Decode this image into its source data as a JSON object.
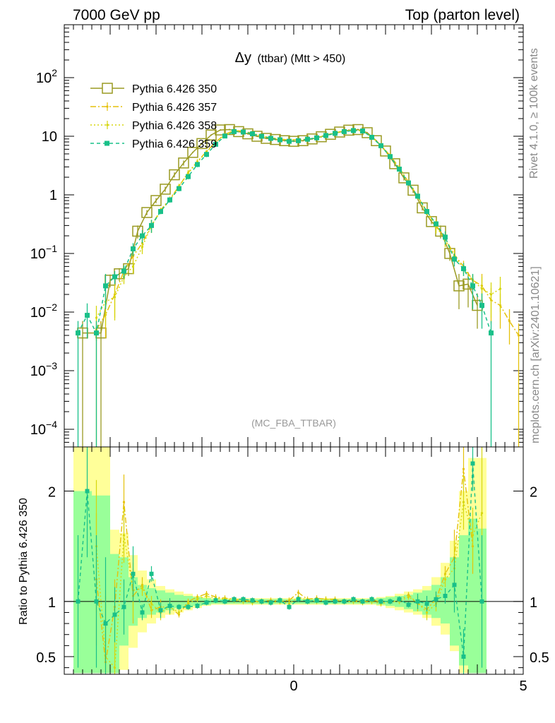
{
  "header": {
    "left": "7000 GeV pp",
    "right": "Top (parton level)"
  },
  "side_labels": {
    "rivet": "Rivet 4.1.0, ≥ 100k events",
    "mcplots": "mcplots.cern.ch [arXiv:2401.10621]"
  },
  "colors": {
    "s350": "#9a9a22",
    "s357": "#e5c10a",
    "s358": "#d6d60e",
    "s359": "#19c089",
    "band_yellow": "#ffff99",
    "band_green": "#99ff99"
  },
  "chart_data": [
    {
      "type": "line",
      "title": "Δy (ttbar) (Mtt > 450)",
      "title_main": "Δy",
      "title_sub": "(ttbar) (Mtt > 450)",
      "watermark": "(MC_FBA_TTBAR)",
      "xlabel": "",
      "ylabel": "",
      "yscale": "log",
      "xlim": [
        -5,
        5
      ],
      "ylim": [
        5e-05,
        800
      ],
      "ytick_labels": [
        {
          "value": 0.0001,
          "base": "10",
          "exp": "−4"
        },
        {
          "value": 0.001,
          "base": "10",
          "exp": "−3"
        },
        {
          "value": 0.01,
          "base": "10",
          "exp": "−2"
        },
        {
          "value": 0.1,
          "base": "10",
          "exp": "−1"
        },
        {
          "value": 1,
          "base": "1",
          "exp": ""
        },
        {
          "value": 10,
          "base": "10",
          "exp": ""
        },
        {
          "value": 100,
          "base": "10",
          "exp": "2"
        }
      ],
      "legend": [
        "Pythia 6.426 350",
        "Pythia 6.426 357",
        "Pythia 6.426 358",
        "Pythia 6.426 359"
      ],
      "legend_position": "top-left",
      "series": [
        {
          "name": "Pythia 6.426 350",
          "style": "solid-open-square",
          "x": [
            -4.6,
            -4.2,
            -4.0,
            -3.8,
            -3.6,
            -3.4,
            -3.2,
            -3.0,
            -2.8,
            -2.6,
            -2.4,
            -2.2,
            -2.0,
            -1.8,
            -1.6,
            -1.4,
            -1.2,
            -1.0,
            -0.8,
            -0.6,
            -0.4,
            -0.2,
            0.0,
            0.2,
            0.4,
            0.6,
            0.8,
            1.0,
            1.2,
            1.4,
            1.6,
            1.8,
            2.0,
            2.2,
            2.4,
            2.6,
            2.8,
            3.0,
            3.2,
            3.4,
            3.6,
            3.8,
            4.0
          ],
          "y": [
            0.0044,
            0.0044,
            0.035,
            0.045,
            0.055,
            0.24,
            0.5,
            0.8,
            1.25,
            2.2,
            3.5,
            5.3,
            7.5,
            10.5,
            12.8,
            13.0,
            12.0,
            11.0,
            10.0,
            9.2,
            8.8,
            8.4,
            8.2,
            8.4,
            9.0,
            9.8,
            10.8,
            11.8,
            12.7,
            13.0,
            11.5,
            8.4,
            5.6,
            3.4,
            1.95,
            1.2,
            0.6,
            0.35,
            0.24,
            0.1,
            0.028,
            0.03,
            0.013
          ]
        },
        {
          "name": "Pythia 6.426 357",
          "style": "dashdot-small",
          "x": [
            -4.3,
            -4.1,
            -3.9,
            -3.7,
            -3.5,
            -3.3,
            -3.1,
            -2.9,
            -2.7,
            -2.5,
            -2.3,
            -2.1,
            -1.9,
            -1.7,
            -1.5,
            -1.3,
            -1.1,
            -0.9,
            -0.7,
            -0.5,
            -0.3,
            -0.1,
            0.1,
            0.3,
            0.5,
            0.7,
            0.9,
            1.1,
            1.3,
            1.5,
            1.7,
            1.9,
            2.1,
            2.3,
            2.5,
            2.7,
            2.9,
            3.1,
            3.3,
            3.5,
            3.7,
            3.9,
            4.1,
            4.3,
            4.5,
            4.7,
            4.9
          ],
          "y": [
            0.005,
            0.009,
            0.02,
            0.05,
            0.09,
            0.15,
            0.3,
            0.55,
            0.85,
            1.4,
            2.4,
            3.7,
            5.5,
            8.0,
            10.8,
            12.5,
            12.3,
            11.2,
            10.2,
            9.4,
            9.0,
            8.6,
            8.8,
            8.9,
            9.5,
            10.5,
            11.5,
            12.3,
            12.8,
            12.4,
            9.8,
            7.0,
            4.7,
            2.9,
            1.65,
            0.95,
            0.52,
            0.3,
            0.18,
            0.095,
            0.06,
            0.035,
            0.028,
            0.016,
            0.013,
            0.007,
            0.004
          ]
        },
        {
          "name": "Pythia 6.426 358",
          "style": "dotted-small",
          "x": [
            -4.3,
            -4.1,
            -3.9,
            -3.7,
            -3.5,
            -3.3,
            -3.1,
            -2.9,
            -2.7,
            -2.5,
            -2.3,
            -2.1,
            -1.9,
            -1.7,
            -1.5,
            -1.3,
            -1.1,
            -0.9,
            -0.7,
            -0.5,
            -0.3,
            -0.1,
            0.1,
            0.3,
            0.5,
            0.7,
            0.9,
            1.1,
            1.3,
            1.5,
            1.7,
            1.9,
            2.1,
            2.3,
            2.5,
            2.7,
            2.9,
            3.1,
            3.3,
            3.5,
            3.7,
            3.9,
            4.1,
            4.3,
            4.5
          ],
          "y": [
            0.008,
            0.015,
            0.018,
            0.04,
            0.06,
            0.13,
            0.3,
            0.52,
            0.82,
            1.4,
            2.35,
            3.6,
            5.4,
            7.9,
            10.6,
            12.3,
            12.1,
            11.0,
            10.1,
            9.3,
            8.9,
            8.6,
            8.7,
            8.9,
            9.4,
            10.4,
            11.4,
            12.2,
            12.7,
            12.3,
            9.7,
            6.9,
            4.6,
            2.85,
            1.62,
            0.93,
            0.5,
            0.29,
            0.17,
            0.09,
            0.055,
            0.035,
            0.025,
            0.02,
            0.025
          ]
        },
        {
          "name": "Pythia 6.426 359",
          "style": "dashed-filled-square",
          "x": [
            -4.7,
            -4.5,
            -4.3,
            -4.1,
            -3.9,
            -3.7,
            -3.5,
            -3.3,
            -3.1,
            -2.9,
            -2.7,
            -2.5,
            -2.3,
            -2.1,
            -1.9,
            -1.7,
            -1.5,
            -1.3,
            -1.1,
            -0.9,
            -0.7,
            -0.5,
            -0.3,
            -0.1,
            0.1,
            0.3,
            0.5,
            0.7,
            0.9,
            1.1,
            1.3,
            1.5,
            1.7,
            1.9,
            2.1,
            2.3,
            2.5,
            2.7,
            2.9,
            3.1,
            3.3,
            3.5,
            3.7,
            3.9,
            4.1,
            4.3
          ],
          "y": [
            0.0044,
            0.0088,
            0.0044,
            0.028,
            0.04,
            0.05,
            0.12,
            0.2,
            0.3,
            0.52,
            0.82,
            1.28,
            2.05,
            3.3,
            4.9,
            7.3,
            10.1,
            12.0,
            11.8,
            11.0,
            10.0,
            9.2,
            8.7,
            8.2,
            8.4,
            8.9,
            9.4,
            10.3,
            11.2,
            12.0,
            12.5,
            12.3,
            9.6,
            6.9,
            4.5,
            2.75,
            1.6,
            0.95,
            0.52,
            0.32,
            0.19,
            0.08,
            0.055,
            0.028,
            0.013,
            0.0044
          ]
        }
      ]
    },
    {
      "type": "line",
      "title": "",
      "xlabel": "",
      "ylabel": "Ratio to Pythia 6.426 350",
      "xlim": [
        -5,
        5
      ],
      "ylim": [
        0.34,
        2.4
      ],
      "xtick_labels": [
        {
          "value": 0,
          "label": "0"
        },
        {
          "value": 5,
          "label": "5"
        }
      ],
      "ytick_labels": [
        {
          "value": 0.5,
          "label": "0.5"
        },
        {
          "value": 1,
          "label": "1"
        },
        {
          "value": 2,
          "label": "2"
        }
      ],
      "bands": {
        "x_edges": [
          -4.8,
          -4.4,
          -4.0,
          -3.8,
          -3.6,
          -3.4,
          -3.2,
          -3.0,
          -2.8,
          -2.6,
          -2.4,
          -2.2,
          -2.0,
          -1.8,
          1.8,
          2.0,
          2.2,
          2.4,
          2.6,
          2.8,
          3.0,
          3.2,
          3.4,
          3.6,
          3.8,
          4.0,
          4.2
        ],
        "yellow_low": [
          0.35,
          0.35,
          0.35,
          0.38,
          0.58,
          0.72,
          0.8,
          0.85,
          0.88,
          0.9,
          0.92,
          0.94,
          0.96,
          0.97,
          0.96,
          0.94,
          0.92,
          0.9,
          0.88,
          0.85,
          0.78,
          0.7,
          0.55,
          0.35,
          0.35,
          0.35
        ],
        "yellow_high": [
          2.4,
          2.4,
          1.65,
          1.62,
          1.42,
          1.28,
          1.2,
          1.14,
          1.11,
          1.09,
          1.07,
          1.05,
          1.04,
          1.03,
          1.04,
          1.05,
          1.07,
          1.09,
          1.11,
          1.14,
          1.22,
          1.35,
          1.55,
          2.0,
          2.3,
          2.3
        ],
        "green_low": [
          0.35,
          0.35,
          0.35,
          0.6,
          0.78,
          0.85,
          0.88,
          0.9,
          0.92,
          0.94,
          0.95,
          0.96,
          0.97,
          0.98,
          0.97,
          0.96,
          0.95,
          0.93,
          0.91,
          0.88,
          0.85,
          0.8,
          0.6,
          0.42,
          0.35,
          0.35
        ],
        "green_high": [
          2.0,
          1.96,
          1.43,
          1.4,
          1.22,
          1.15,
          1.12,
          1.1,
          1.08,
          1.06,
          1.05,
          1.04,
          1.03,
          1.02,
          1.03,
          1.04,
          1.05,
          1.06,
          1.08,
          1.1,
          1.15,
          1.22,
          1.4,
          1.6,
          1.75,
          1.66
        ]
      },
      "series": [
        {
          "name": "Pythia 6.426 357",
          "x": [
            -4.3,
            -4.1,
            -3.9,
            -3.7,
            -3.5,
            -3.3,
            -3.1,
            -2.9,
            -2.7,
            -2.5,
            -2.3,
            -2.1,
            -1.9,
            -1.7,
            -1.5,
            -1.3,
            -1.1,
            -0.9,
            -0.7,
            -0.5,
            -0.3,
            -0.1,
            0.1,
            0.3,
            0.5,
            0.7,
            0.9,
            1.1,
            1.3,
            1.5,
            1.7,
            1.9,
            2.1,
            2.3,
            2.5,
            2.7,
            2.9,
            3.1,
            3.3,
            3.5,
            3.7,
            3.9
          ],
          "y": [
            1.2,
            0.45,
            0.95,
            1.9,
            1.05,
            1.15,
            0.92,
            0.95,
            0.95,
            0.88,
            1.0,
            1.04,
            1.07,
            1.04,
            1.03,
            1.02,
            1.01,
            1.0,
            1.0,
            1.01,
            1.0,
            1.01,
            1.08,
            1.02,
            1.03,
            1.02,
            1.02,
            1.0,
            1.01,
            1.0,
            1.01,
            1.0,
            1.0,
            1.01,
            1.06,
            0.98,
            0.93,
            1.02,
            1.25,
            1.4,
            2.2,
            1.5
          ]
        },
        {
          "name": "Pythia 6.426 358",
          "x": [
            -4.3,
            -4.1,
            -3.9,
            -3.7,
            -3.5,
            -3.3,
            -3.1,
            -2.9,
            -2.7,
            -2.5,
            -2.3,
            -2.1,
            -1.9,
            -1.7,
            -1.5,
            -1.3,
            -1.1,
            -0.9,
            -0.7,
            -0.5,
            -0.3,
            -0.1,
            0.1,
            0.3,
            0.5,
            0.7,
            0.9,
            1.1,
            1.3,
            1.5,
            1.7,
            1.9,
            2.1,
            2.3,
            2.5,
            2.7,
            2.9,
            3.1,
            3.3,
            3.5,
            3.7,
            3.9,
            4.1
          ],
          "y": [
            1.5,
            0.5,
            0.4,
            1.6,
            1.1,
            1.12,
            0.98,
            0.9,
            0.95,
            0.9,
            0.98,
            1.02,
            1.05,
            1.03,
            1.02,
            1.01,
            1.0,
            0.99,
            1.0,
            0.99,
            1.0,
            0.98,
            1.04,
            1.01,
            1.0,
            1.02,
            1.01,
            1.0,
            1.0,
            0.99,
            1.0,
            0.98,
            1.0,
            1.0,
            1.04,
            0.99,
            0.9,
            0.98,
            1.2,
            1.3,
            1.9,
            1.6,
            1.8
          ]
        },
        {
          "name": "Pythia 6.426 359",
          "x": [
            -4.7,
            -4.5,
            -4.3,
            -4.1,
            -3.9,
            -3.7,
            -3.5,
            -3.3,
            -3.1,
            -2.9,
            -2.7,
            -2.5,
            -2.3,
            -2.1,
            -1.9,
            -1.7,
            -1.5,
            -1.3,
            -1.1,
            -0.9,
            -0.7,
            -0.5,
            -0.3,
            -0.1,
            0.1,
            0.3,
            0.5,
            0.7,
            0.9,
            1.1,
            1.3,
            1.5,
            1.7,
            1.9,
            2.1,
            2.3,
            2.5,
            2.7,
            2.9,
            3.1,
            3.3,
            3.5,
            3.7,
            3.9,
            4.1
          ],
          "y": [
            1.0,
            2.0,
            1.0,
            0.8,
            0.88,
            0.95,
            1.25,
            0.9,
            1.25,
            0.92,
            0.96,
            0.95,
            0.95,
            0.96,
            0.99,
            1.01,
            1.0,
            1.02,
            1.02,
            1.01,
            1.0,
            0.99,
            1.01,
            0.95,
            1.02,
            1.0,
            1.01,
            0.99,
            1.0,
            1.0,
            1.02,
            1.0,
            1.02,
            1.0,
            1.0,
            1.02,
            0.97,
            1.0,
            0.98,
            1.02,
            1.05,
            1.15,
            0.5,
            2.25,
            1.0
          ]
        }
      ]
    }
  ]
}
